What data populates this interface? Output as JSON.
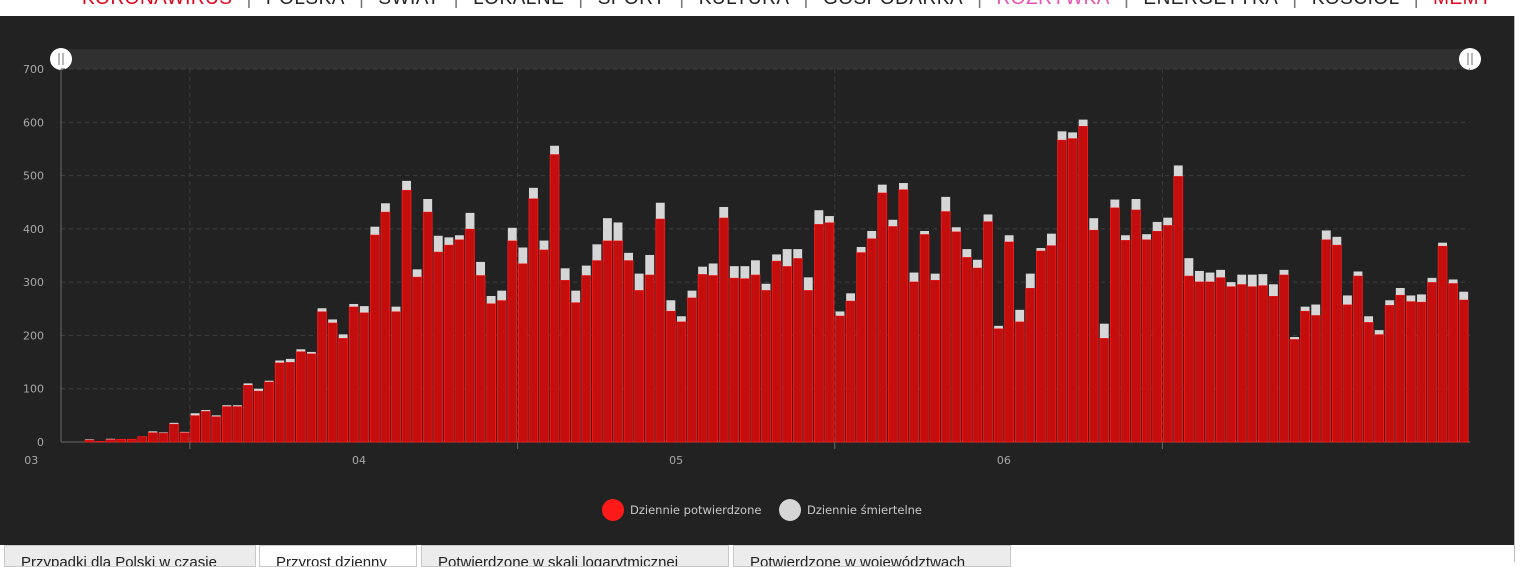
{
  "nav": {
    "items": [
      {
        "label": "KORONAWIRUS",
        "color": "#e2001a"
      },
      {
        "label": "POLSKA",
        "color": "#222222"
      },
      {
        "label": "ŚWIAT",
        "color": "#222222"
      },
      {
        "label": "LOKALNE",
        "color": "#222222"
      },
      {
        "label": "SPORT",
        "color": "#222222"
      },
      {
        "label": "KULTURA",
        "color": "#222222"
      },
      {
        "label": "GOSPODARKA",
        "color": "#222222"
      },
      {
        "label": "ROZRYWKA",
        "color": "#e84fb2"
      },
      {
        "label": "ENERGETYKA",
        "color": "#222222"
      },
      {
        "label": "KOŚCIÓŁ",
        "color": "#222222"
      },
      {
        "label": "MEMY",
        "color": "#e2001a"
      }
    ]
  },
  "tabs": [
    {
      "label": "Przypadki dla Polski w czasie",
      "active": false
    },
    {
      "label": "Przyrost dzienny",
      "active": true
    },
    {
      "label": "Potwierdzone w skali logarytmicznej",
      "active": false
    },
    {
      "label": "Potwierdzone w województwach",
      "active": false
    }
  ],
  "colors": {
    "panel_bg": "#222222",
    "confirmed": "#c40d0d",
    "confirmed_edge": "#ff1a1a",
    "deaths": "#d6d6d6",
    "grid": "#3f3f3f",
    "axis_text": "#a8a8a8",
    "legend_text": "#c8c8c8"
  },
  "chart_data": {
    "type": "bar",
    "stacked": true,
    "title": "",
    "xlabel": "",
    "ylabel": "",
    "ylim": [
      0,
      700
    ],
    "yticks": [
      0,
      100,
      200,
      300,
      400,
      500,
      600,
      700
    ],
    "xaxis": {
      "type": "date",
      "start": "2020-03-04",
      "ticks": [
        {
          "label": "03",
          "date": "2020-03-01"
        },
        {
          "label": "04",
          "date": "2020-04-01"
        },
        {
          "label": "05",
          "date": "2020-05-01"
        },
        {
          "label": "06",
          "date": "2020-06-01"
        }
      ],
      "period_boundaries": [
        "2020-03-16",
        "2020-04-16",
        "2020-05-16",
        "2020-06-16"
      ]
    },
    "grid": true,
    "legend": {
      "position": "bottom-center"
    },
    "series": [
      {
        "name": "Dziennie potwierdzone",
        "values": [
          0,
          0,
          4,
          1,
          5,
          5,
          5,
          10,
          18,
          17,
          34,
          18,
          50,
          58,
          48,
          67,
          67,
          107,
          96,
          113,
          149,
          150,
          170,
          166,
          245,
          224,
          195,
          254,
          243,
          389,
          432,
          245,
          473,
          310,
          432,
          357,
          370,
          380,
          400,
          313,
          260,
          266,
          378,
          335,
          457,
          361,
          540,
          304,
          262,
          313,
          341,
          378,
          378,
          341,
          285,
          314,
          419,
          246,
          226,
          271,
          315,
          313,
          421,
          308,
          307,
          314,
          285,
          340,
          330,
          345,
          285,
          409,
          412,
          237,
          265,
          356,
          382,
          468,
          405,
          474,
          301,
          390,
          304,
          433,
          395,
          347,
          327,
          414,
          213,
          376,
          226,
          289,
          359,
          369,
          567,
          570,
          593,
          398,
          195,
          440,
          379,
          436,
          380,
          396,
          407,
          499,
          312,
          301,
          301,
          309,
          292,
          296,
          292,
          294,
          274,
          314,
          193,
          246,
          238,
          380,
          370,
          258,
          312,
          225,
          202,
          257,
          276,
          264,
          263,
          300,
          368,
          298,
          267
        ]
      },
      {
        "name": "Dziennie śmiertelne",
        "values": [
          0,
          0,
          1,
          0,
          1,
          0,
          0,
          0,
          2,
          1,
          2,
          1,
          4,
          2,
          2,
          2,
          2,
          3,
          4,
          2,
          4,
          6,
          4,
          3,
          6,
          6,
          7,
          5,
          12,
          15,
          16,
          9,
          17,
          14,
          24,
          30,
          14,
          8,
          30,
          25,
          14,
          18,
          24,
          30,
          20,
          17,
          16,
          22,
          22,
          18,
          30,
          42,
          34,
          14,
          31,
          37,
          30,
          20,
          10,
          13,
          14,
          22,
          20,
          22,
          23,
          27,
          12,
          12,
          32,
          17,
          24,
          26,
          12,
          8,
          14,
          10,
          14,
          15,
          12,
          12,
          17,
          6,
          12,
          27,
          8,
          15,
          15,
          13,
          5,
          12,
          22,
          27,
          5,
          22,
          16,
          11,
          12,
          22,
          27,
          15,
          9,
          20,
          10,
          17,
          14,
          20,
          33,
          20,
          17,
          14,
          8,
          18,
          22,
          21,
          22,
          9,
          4,
          8,
          20,
          17,
          15,
          17,
          8,
          11,
          8,
          9,
          13,
          11,
          14,
          8,
          6,
          7,
          15
        ]
      }
    ]
  }
}
